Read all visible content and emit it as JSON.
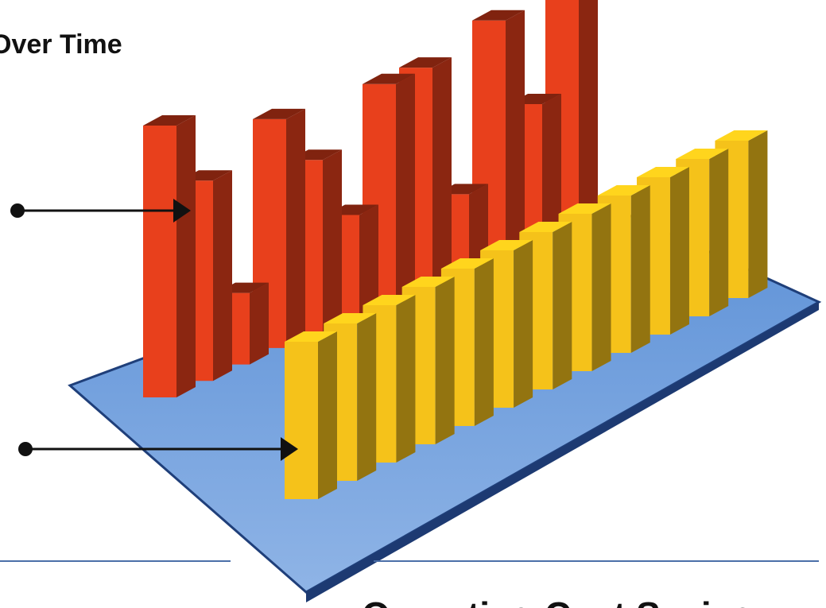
{
  "chart_data": {
    "type": "bar3d",
    "title": "Over Time",
    "caption": "Operating Cost Savings",
    "series": [
      {
        "color": "#e8401c",
        "values": [
          9.5,
          7,
          2.5,
          8,
          6,
          3.5,
          7.5,
          7.5,
          2.5,
          8,
          4.5,
          8
        ]
      },
      {
        "color": "#f5c21a",
        "values": [
          5.5,
          5.5,
          5.5,
          5.5,
          5.5,
          5.5,
          5.5,
          5.5,
          5.5,
          5.5,
          5.5,
          5.5
        ]
      }
    ]
  }
}
